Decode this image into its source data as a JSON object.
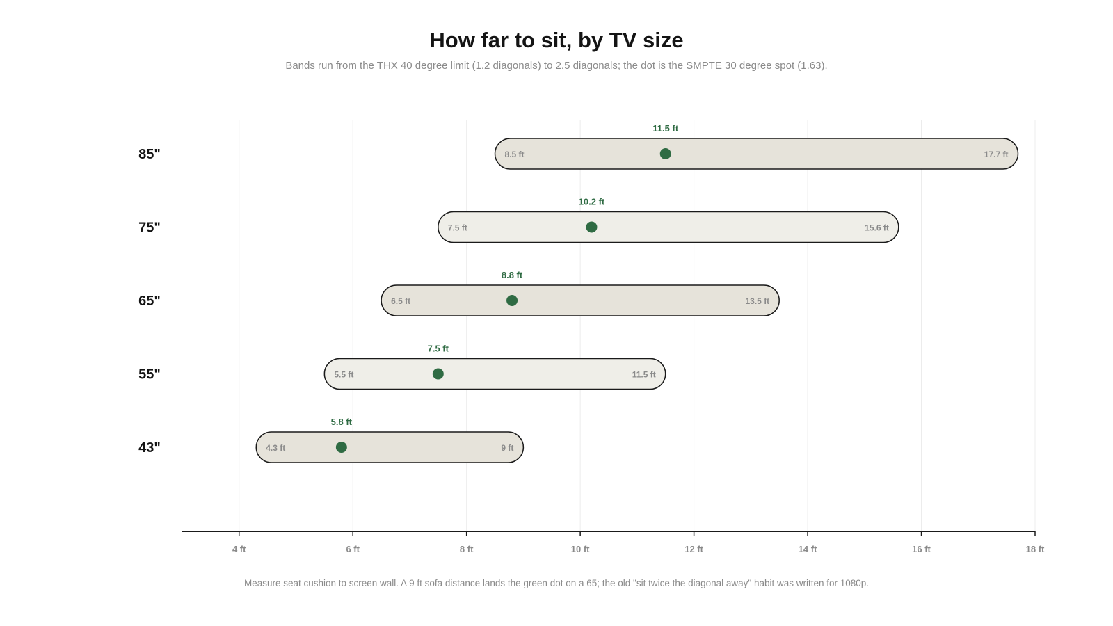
{
  "header": {
    "title": "How far to sit, by TV size",
    "subtitle": "Bands run from the THX 40 degree limit (1.2 diagonals) to 2.5 diagonals; the dot is the SMPTE 30 degree spot (1.63)."
  },
  "footer": {
    "note": "Measure seat cushion to screen wall. A 9 ft sofa distance lands the green dot on a 65; the old \"sit twice the diagonal away\" habit was written for 1080p."
  },
  "colors": {
    "dot": "#2f6b43",
    "dot_label": "#2f6b43",
    "band_fill_dark": "#e6e3da",
    "band_fill_light": "#efeee8",
    "band_stroke": "#1a1a1a",
    "range_label": "#8a8a8a",
    "grid": "#ececec",
    "axis": "#1a1a1a"
  },
  "chart_data": {
    "type": "range",
    "title": "How far to sit, by TV size",
    "xlabel": "",
    "ylabel": "",
    "xlim": [
      3,
      18
    ],
    "xticks": [
      4,
      6,
      8,
      10,
      12,
      14,
      16,
      18
    ],
    "xtick_labels": [
      "4 ft",
      "6 ft",
      "8 ft",
      "10 ft",
      "12 ft",
      "14 ft",
      "16 ft",
      "18 ft"
    ],
    "grid": "vertical",
    "categories": [
      "85\"",
      "75\"",
      "65\"",
      "55\"",
      "43\""
    ],
    "low": [
      8.5,
      7.5,
      6.5,
      5.5,
      4.3
    ],
    "high": [
      17.7,
      15.6,
      13.5,
      11.5,
      9
    ],
    "dot": [
      11.5,
      10.2,
      8.8,
      7.5,
      5.8
    ],
    "low_labels": [
      "8.5 ft",
      "7.5 ft",
      "6.5 ft",
      "5.5 ft",
      "4.3 ft"
    ],
    "high_labels": [
      "17.7 ft",
      "15.6 ft",
      "13.5 ft",
      "11.5 ft",
      "9 ft"
    ],
    "dot_labels": [
      "11.5 ft",
      "10.2 ft",
      "8.8 ft",
      "7.5 ft",
      "5.8 ft"
    ]
  }
}
